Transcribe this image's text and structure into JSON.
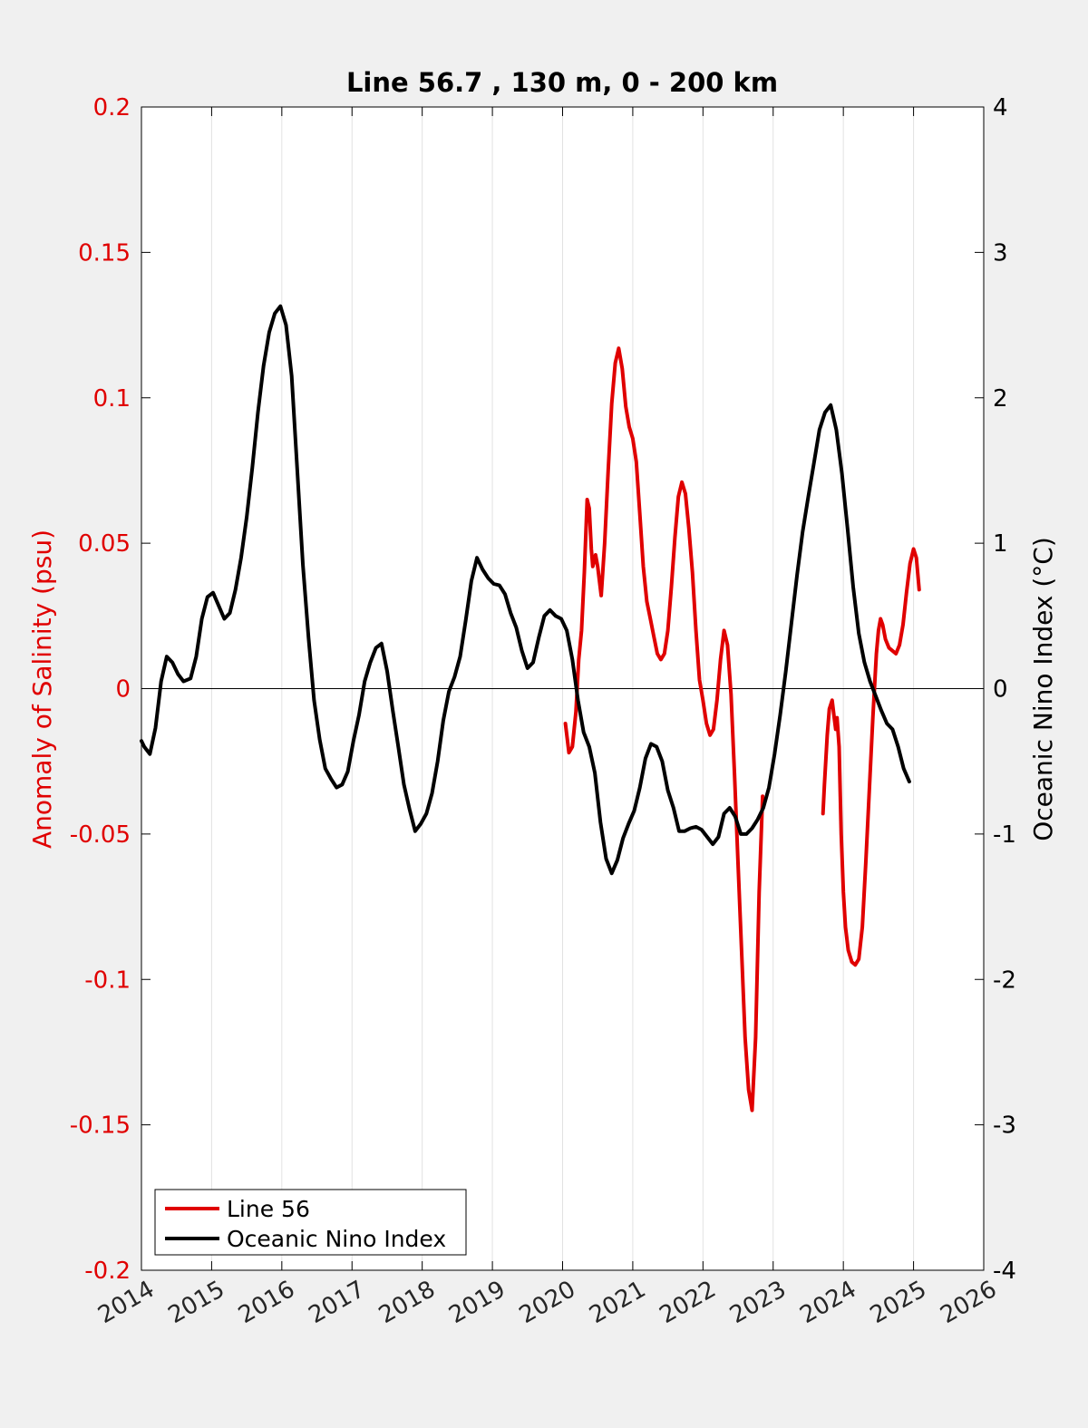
{
  "chart_data": {
    "type": "line",
    "title": "Line 56.7 , 130 m, 0 - 200 km",
    "ylabel_left": "Anomaly of Salinity (psu)",
    "ylabel_right": "Oceanic Nino Index (°C)",
    "xlabel": "",
    "xlim": [
      2014,
      2026
    ],
    "ylim_left": [
      -0.2,
      0.2
    ],
    "ylim_right": [
      -4,
      4
    ],
    "grid": "vertical",
    "legend_position": "bottom-left",
    "x_ticks": [
      "2014",
      "2015",
      "2016",
      "2017",
      "2018",
      "2019",
      "2020",
      "2021",
      "2022",
      "2023",
      "2024",
      "2025",
      "2026"
    ],
    "y_ticks_left": [
      "0.2",
      "0.15",
      "0.1",
      "0.05",
      "0",
      "-0.05",
      "-0.1",
      "-0.15",
      "-0.2"
    ],
    "y_ticks_right": [
      "4",
      "3",
      "2",
      "1",
      "0",
      "-1",
      "-2",
      "-3",
      "-4"
    ],
    "colors": {
      "line56": "#e00000",
      "oni": "#000000"
    },
    "series": [
      {
        "name": "Line 56",
        "axis": "left",
        "segments": [
          [
            [
              2020.04,
              -0.012
            ],
            [
              2020.09,
              -0.022
            ],
            [
              2020.14,
              -0.02
            ],
            [
              2020.19,
              -0.008
            ],
            [
              2020.23,
              0.01
            ],
            [
              2020.27,
              0.02
            ],
            [
              2020.31,
              0.04
            ],
            [
              2020.35,
              0.065
            ],
            [
              2020.38,
              0.062
            ],
            [
              2020.41,
              0.048
            ],
            [
              2020.43,
              0.042
            ],
            [
              2020.47,
              0.046
            ],
            [
              2020.5,
              0.042
            ],
            [
              2020.55,
              0.032
            ],
            [
              2020.6,
              0.05
            ],
            [
              2020.65,
              0.075
            ],
            [
              2020.7,
              0.098
            ],
            [
              2020.75,
              0.112
            ],
            [
              2020.8,
              0.117
            ],
            [
              2020.85,
              0.11
            ],
            [
              2020.9,
              0.097
            ],
            [
              2020.95,
              0.09
            ],
            [
              2021.0,
              0.086
            ],
            [
              2021.05,
              0.078
            ],
            [
              2021.1,
              0.06
            ],
            [
              2021.15,
              0.042
            ],
            [
              2021.2,
              0.03
            ],
            [
              2021.25,
              0.024
            ],
            [
              2021.3,
              0.018
            ],
            [
              2021.35,
              0.012
            ],
            [
              2021.4,
              0.01
            ],
            [
              2021.45,
              0.012
            ],
            [
              2021.5,
              0.02
            ],
            [
              2021.55,
              0.035
            ],
            [
              2021.6,
              0.052
            ],
            [
              2021.65,
              0.066
            ],
            [
              2021.7,
              0.071
            ],
            [
              2021.75,
              0.067
            ],
            [
              2021.8,
              0.055
            ],
            [
              2021.85,
              0.04
            ],
            [
              2021.9,
              0.02
            ],
            [
              2021.95,
              0.003
            ],
            [
              2022.0,
              -0.004
            ],
            [
              2022.05,
              -0.012
            ],
            [
              2022.1,
              -0.016
            ],
            [
              2022.15,
              -0.014
            ],
            [
              2022.2,
              -0.004
            ],
            [
              2022.25,
              0.01
            ],
            [
              2022.3,
              0.02
            ],
            [
              2022.35,
              0.015
            ],
            [
              2022.4,
              -0.002
            ],
            [
              2022.45,
              -0.03
            ],
            [
              2022.5,
              -0.06
            ],
            [
              2022.55,
              -0.09
            ],
            [
              2022.6,
              -0.12
            ],
            [
              2022.65,
              -0.138
            ],
            [
              2022.7,
              -0.145
            ],
            [
              2022.75,
              -0.12
            ],
            [
              2022.8,
              -0.07
            ],
            [
              2022.85,
              -0.037
            ]
          ],
          [
            [
              2023.71,
              -0.043
            ],
            [
              2023.73,
              -0.033
            ],
            [
              2023.77,
              -0.016
            ],
            [
              2023.8,
              -0.007
            ],
            [
              2023.84,
              -0.004
            ],
            [
              2023.87,
              -0.01
            ],
            [
              2023.89,
              -0.014
            ],
            [
              2023.91,
              -0.01
            ],
            [
              2023.94,
              -0.02
            ],
            [
              2023.97,
              -0.05
            ],
            [
              2024.0,
              -0.07
            ],
            [
              2024.03,
              -0.082
            ],
            [
              2024.07,
              -0.09
            ],
            [
              2024.12,
              -0.094
            ],
            [
              2024.17,
              -0.095
            ],
            [
              2024.22,
              -0.093
            ],
            [
              2024.27,
              -0.082
            ],
            [
              2024.32,
              -0.06
            ],
            [
              2024.37,
              -0.035
            ],
            [
              2024.42,
              -0.01
            ],
            [
              2024.47,
              0.012
            ],
            [
              2024.5,
              0.02
            ],
            [
              2024.53,
              0.024
            ],
            [
              2024.56,
              0.022
            ],
            [
              2024.6,
              0.017
            ],
            [
              2024.65,
              0.014
            ],
            [
              2024.7,
              0.013
            ],
            [
              2024.75,
              0.012
            ],
            [
              2024.8,
              0.015
            ],
            [
              2024.85,
              0.022
            ],
            [
              2024.9,
              0.033
            ],
            [
              2024.95,
              0.043
            ],
            [
              2025.0,
              0.048
            ],
            [
              2025.04,
              0.045
            ],
            [
              2025.08,
              0.034
            ]
          ]
        ]
      },
      {
        "name": "Oceanic Nino Index",
        "axis": "right",
        "segments": [
          [
            [
              2014.0,
              -0.36
            ],
            [
              2014.04,
              -0.4
            ],
            [
              2014.12,
              -0.45
            ],
            [
              2014.2,
              -0.27
            ],
            [
              2014.28,
              0.05
            ],
            [
              2014.36,
              0.22
            ],
            [
              2014.44,
              0.18
            ],
            [
              2014.52,
              0.1
            ],
            [
              2014.6,
              0.05
            ],
            [
              2014.7,
              0.07
            ],
            [
              2014.78,
              0.22
            ],
            [
              2014.86,
              0.48
            ],
            [
              2014.94,
              0.63
            ],
            [
              2015.02,
              0.66
            ],
            [
              2015.1,
              0.57
            ],
            [
              2015.18,
              0.48
            ],
            [
              2015.26,
              0.52
            ],
            [
              2015.34,
              0.68
            ],
            [
              2015.42,
              0.9
            ],
            [
              2015.5,
              1.18
            ],
            [
              2015.58,
              1.52
            ],
            [
              2015.66,
              1.9
            ],
            [
              2015.74,
              2.22
            ],
            [
              2015.82,
              2.45
            ],
            [
              2015.9,
              2.58
            ],
            [
              2015.98,
              2.63
            ],
            [
              2016.06,
              2.5
            ],
            [
              2016.14,
              2.15
            ],
            [
              2016.22,
              1.5
            ],
            [
              2016.3,
              0.85
            ],
            [
              2016.38,
              0.35
            ],
            [
              2016.46,
              -0.08
            ],
            [
              2016.54,
              -0.35
            ],
            [
              2016.62,
              -0.55
            ],
            [
              2016.7,
              -0.62
            ],
            [
              2016.78,
              -0.68
            ],
            [
              2016.86,
              -0.66
            ],
            [
              2016.94,
              -0.57
            ],
            [
              2017.02,
              -0.36
            ],
            [
              2017.1,
              -0.18
            ],
            [
              2017.18,
              0.05
            ],
            [
              2017.26,
              0.18
            ],
            [
              2017.34,
              0.28
            ],
            [
              2017.42,
              0.31
            ],
            [
              2017.5,
              0.12
            ],
            [
              2017.58,
              -0.15
            ],
            [
              2017.66,
              -0.4
            ],
            [
              2017.74,
              -0.66
            ],
            [
              2017.82,
              -0.83
            ],
            [
              2017.9,
              -0.98
            ],
            [
              2017.98,
              -0.93
            ],
            [
              2018.06,
              -0.86
            ],
            [
              2018.14,
              -0.72
            ],
            [
              2018.22,
              -0.5
            ],
            [
              2018.3,
              -0.22
            ],
            [
              2018.38,
              -0.02
            ],
            [
              2018.46,
              0.08
            ],
            [
              2018.54,
              0.22
            ],
            [
              2018.62,
              0.47
            ],
            [
              2018.7,
              0.74
            ],
            [
              2018.78,
              0.9
            ],
            [
              2018.86,
              0.82
            ],
            [
              2018.94,
              0.76
            ],
            [
              2019.02,
              0.72
            ],
            [
              2019.1,
              0.71
            ],
            [
              2019.18,
              0.65
            ],
            [
              2019.26,
              0.52
            ],
            [
              2019.34,
              0.42
            ],
            [
              2019.42,
              0.26
            ],
            [
              2019.5,
              0.14
            ],
            [
              2019.58,
              0.18
            ],
            [
              2019.66,
              0.35
            ],
            [
              2019.74,
              0.5
            ],
            [
              2019.82,
              0.54
            ],
            [
              2019.9,
              0.5
            ],
            [
              2019.98,
              0.48
            ],
            [
              2020.06,
              0.4
            ],
            [
              2020.14,
              0.2
            ],
            [
              2020.22,
              -0.08
            ],
            [
              2020.3,
              -0.3
            ],
            [
              2020.38,
              -0.4
            ],
            [
              2020.46,
              -0.58
            ],
            [
              2020.54,
              -0.92
            ],
            [
              2020.62,
              -1.17
            ],
            [
              2020.7,
              -1.27
            ],
            [
              2020.78,
              -1.18
            ],
            [
              2020.86,
              -1.03
            ],
            [
              2020.94,
              -0.93
            ],
            [
              2021.02,
              -0.84
            ],
            [
              2021.1,
              -0.68
            ],
            [
              2021.18,
              -0.48
            ],
            [
              2021.26,
              -0.38
            ],
            [
              2021.34,
              -0.4
            ],
            [
              2021.42,
              -0.5
            ],
            [
              2021.5,
              -0.7
            ],
            [
              2021.58,
              -0.82
            ],
            [
              2021.66,
              -0.98
            ],
            [
              2021.74,
              -0.98
            ],
            [
              2021.82,
              -0.96
            ],
            [
              2021.9,
              -0.95
            ],
            [
              2021.98,
              -0.97
            ],
            [
              2022.06,
              -1.02
            ],
            [
              2022.14,
              -1.07
            ],
            [
              2022.22,
              -1.02
            ],
            [
              2022.3,
              -0.86
            ],
            [
              2022.38,
              -0.82
            ],
            [
              2022.46,
              -0.88
            ],
            [
              2022.54,
              -1.0
            ],
            [
              2022.62,
              -1.0
            ],
            [
              2022.7,
              -0.96
            ],
            [
              2022.78,
              -0.9
            ],
            [
              2022.86,
              -0.82
            ],
            [
              2022.94,
              -0.68
            ],
            [
              2023.02,
              -0.45
            ],
            [
              2023.1,
              -0.18
            ],
            [
              2023.18,
              0.12
            ],
            [
              2023.26,
              0.45
            ],
            [
              2023.34,
              0.78
            ],
            [
              2023.42,
              1.08
            ],
            [
              2023.5,
              1.32
            ],
            [
              2023.58,
              1.55
            ],
            [
              2023.66,
              1.78
            ],
            [
              2023.74,
              1.9
            ],
            [
              2023.82,
              1.95
            ],
            [
              2023.9,
              1.78
            ],
            [
              2023.98,
              1.48
            ],
            [
              2024.06,
              1.1
            ],
            [
              2024.14,
              0.7
            ],
            [
              2024.22,
              0.38
            ],
            [
              2024.3,
              0.18
            ],
            [
              2024.38,
              0.05
            ],
            [
              2024.46,
              -0.05
            ],
            [
              2024.54,
              -0.15
            ],
            [
              2024.62,
              -0.24
            ],
            [
              2024.7,
              -0.28
            ],
            [
              2024.78,
              -0.4
            ],
            [
              2024.86,
              -0.55
            ],
            [
              2024.94,
              -0.64
            ]
          ]
        ]
      }
    ]
  }
}
